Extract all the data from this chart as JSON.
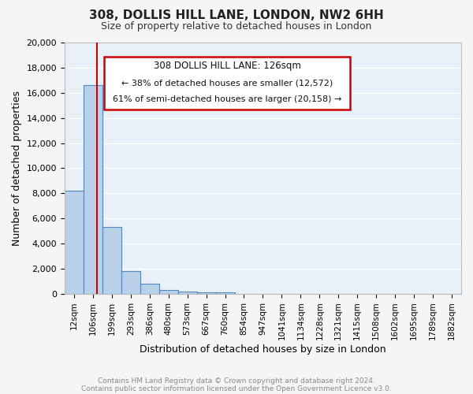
{
  "title": "308, DOLLIS HILL LANE, LONDON, NW2 6HH",
  "subtitle": "Size of property relative to detached houses in London",
  "xlabel": "Distribution of detached houses by size in London",
  "ylabel": "Number of detached properties",
  "bar_color": "#b8d0e8",
  "bar_edge_color": "#5588bb",
  "background_color": "#e8f0f8",
  "annotation_border_color": "#cc0000",
  "red_line_color": "#cc0000",
  "footer_color": "#888888",
  "bin_labels": [
    "12sqm",
    "106sqm",
    "199sqm",
    "293sqm",
    "386sqm",
    "480sqm",
    "573sqm",
    "667sqm",
    "760sqm",
    "854sqm",
    "947sqm",
    "1041sqm",
    "1134sqm",
    "1228sqm",
    "1321sqm",
    "1415sqm",
    "1508sqm",
    "1602sqm",
    "1695sqm",
    "1789sqm",
    "1882sqm"
  ],
  "bin_values": [
    8200,
    16600,
    5300,
    1800,
    800,
    300,
    200,
    100,
    100,
    0,
    0,
    0,
    0,
    0,
    0,
    0,
    0,
    0,
    0,
    0,
    0
  ],
  "red_line_x": 1.2,
  "property_label": "308 DOLLIS HILL LANE: 126sqm",
  "annotation_line1": "← 38% of detached houses are smaller (12,572)",
  "annotation_line2": "61% of semi-detached houses are larger (20,158) →",
  "ylim": [
    0,
    20000
  ],
  "yticks": [
    0,
    2000,
    4000,
    6000,
    8000,
    10000,
    12000,
    14000,
    16000,
    18000,
    20000
  ],
  "footer1": "Contains HM Land Registry data © Crown copyright and database right 2024.",
  "footer2": "Contains public sector information licensed under the Open Government Licence v3.0."
}
